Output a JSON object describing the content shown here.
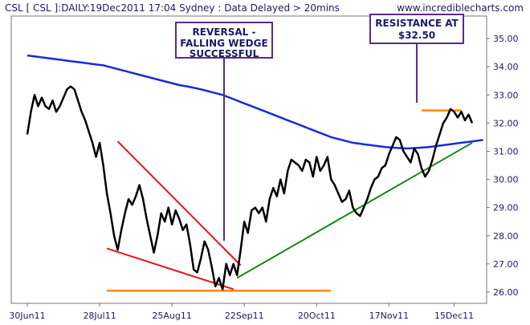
{
  "header": {
    "title": "CSL [ CSL ]:DAILY:19Dec2011 17:04 Sydney : Data Delayed > 20mins",
    "site": "www.incrediblecharts.com"
  },
  "annotations": {
    "reversal_lines": [
      "REVERSAL -",
      "FALLING WEDGE",
      "SUCCESSFUL"
    ],
    "resistance_lines": [
      "RESISTANCE AT",
      "$32.50"
    ]
  },
  "colors": {
    "price": "#000000",
    "moving_average": "#1a2ad6",
    "wedge": "#ee1111",
    "support": "#ff8800",
    "trendline": "#128a12",
    "annotation_border": "#5a2a8a",
    "text": "#1a1a66"
  },
  "chart_data": {
    "type": "line",
    "ylim": [
      25.6,
      35.8
    ],
    "yticks": [
      "26.00",
      "27.00",
      "28.00",
      "29.00",
      "30.00",
      "31.00",
      "32.00",
      "33.00",
      "34.00",
      "35.00"
    ],
    "xticks": [
      "30Jun11",
      "28Jul11",
      "25Aug11",
      "22Sep11",
      "20Oct11",
      "17Nov11",
      "15Dec11"
    ],
    "xlim": [
      0,
      123
    ],
    "xtick_positions": [
      0,
      20,
      40,
      60,
      80,
      100,
      118
    ],
    "grid": false,
    "series": [
      {
        "values": [
          31.6,
          32.4,
          33.0,
          32.6,
          32.9,
          32.6,
          32.5,
          32.8,
          32.4,
          32.6,
          32.9,
          33.2,
          33.3,
          33.2,
          32.8,
          32.4,
          32.1,
          31.7,
          31.3,
          30.8,
          31.3,
          30.5,
          29.5,
          28.8,
          28.0,
          27.5,
          28.2,
          28.8,
          29.3,
          29.1,
          29.4,
          29.8,
          29.3,
          28.6,
          28.0,
          27.4,
          28.0,
          28.8,
          28.5,
          29.0,
          28.4,
          28.9,
          28.6,
          28.2,
          28.4,
          27.7,
          26.8,
          26.7,
          27.2,
          27.8,
          27.5,
          26.9,
          26.2,
          26.5,
          26.1,
          27.0,
          26.6,
          27.0,
          26.6,
          27.5,
          28.5,
          28.1,
          28.9,
          29.0,
          28.8,
          29.0,
          28.5,
          29.3,
          29.7,
          29.4,
          30.0,
          29.5,
          30.3,
          30.7,
          30.6,
          30.5,
          30.3,
          30.7,
          30.6,
          30.1,
          30.8,
          30.3,
          30.5,
          30.8,
          30.0,
          29.8,
          29.5,
          29.2,
          29.3,
          29.6,
          29.0,
          28.8,
          28.7,
          29.0,
          29.3,
          29.7,
          30.0,
          30.1,
          30.4,
          30.5,
          30.9,
          31.2,
          31.5,
          31.4,
          31.0,
          30.8,
          30.6,
          31.1,
          30.9,
          30.4,
          30.1,
          30.3,
          30.7,
          31.2,
          31.6,
          32.0,
          32.2,
          32.5,
          32.4,
          32.2,
          32.4,
          32.1,
          32.3,
          32.0
        ]
      },
      {
        "values": [
          34.4,
          34.35,
          34.3,
          34.25,
          34.2,
          34.15,
          34.1,
          34.05,
          33.95,
          33.85,
          33.75,
          33.65,
          33.55,
          33.45,
          33.35,
          33.28,
          33.2,
          33.1,
          33.0,
          32.85,
          32.7,
          32.55,
          32.4,
          32.25,
          32.1,
          31.95,
          31.8,
          31.65,
          31.5,
          31.4,
          31.3,
          31.25,
          31.2,
          31.15,
          31.12,
          31.1,
          31.12,
          31.15,
          31.2,
          31.25,
          31.3,
          31.35,
          31.4
        ]
      }
    ],
    "annotations": [
      {
        "type": "trendline",
        "name": "falling-wedge-upper",
        "from": [
          25,
          31.35
        ],
        "to": [
          59,
          26.95
        ]
      },
      {
        "type": "trendline",
        "name": "falling-wedge-lower",
        "from": [
          22,
          27.55
        ],
        "to": [
          57,
          26.1
        ]
      },
      {
        "type": "hline",
        "name": "support",
        "y": 26.05,
        "from": 22,
        "to": 84
      },
      {
        "type": "hline",
        "name": "resistance",
        "y": 32.45,
        "from": 109,
        "to": 120
      },
      {
        "type": "trendline",
        "name": "uptrend",
        "from": [
          58,
          26.5
        ],
        "to": [
          123,
          31.3
        ]
      }
    ]
  }
}
